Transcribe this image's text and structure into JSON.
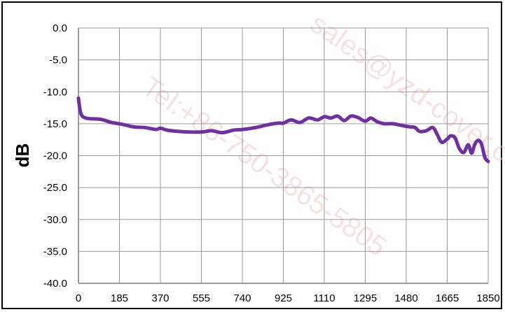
{
  "chart_data": {
    "type": "line",
    "title": "",
    "xlabel": "",
    "ylabel": "dB",
    "xlim": [
      0,
      1850
    ],
    "ylim": [
      -40,
      0
    ],
    "grid": true,
    "x_ticks": [
      "0",
      "185",
      "370",
      "555",
      "740",
      "925",
      "1110",
      "1295",
      "1480",
      "1665",
      "1850"
    ],
    "y_ticks": [
      "0.0",
      "-5.0",
      "-10.0",
      "-15.0",
      "-20.0",
      "-25.0",
      "-30.0",
      "-35.0",
      "-40.0"
    ],
    "series": [
      {
        "color": "#7030a0",
        "x": [
          0,
          10,
          25,
          50,
          100,
          150,
          200,
          250,
          300,
          350,
          370,
          400,
          450,
          500,
          555,
          600,
          650,
          700,
          740,
          800,
          850,
          900,
          925,
          960,
          1000,
          1040,
          1080,
          1110,
          1140,
          1170,
          1200,
          1230,
          1260,
          1295,
          1320,
          1350,
          1380,
          1420,
          1450,
          1480,
          1500,
          1520,
          1540,
          1570,
          1600,
          1620,
          1640,
          1665,
          1680,
          1700,
          1720,
          1740,
          1760,
          1775,
          1790,
          1805,
          1820,
          1835,
          1850
        ],
        "y": [
          -11.0,
          -13.3,
          -14.0,
          -14.2,
          -14.3,
          -14.8,
          -15.1,
          -15.5,
          -15.6,
          -15.9,
          -15.7,
          -16.0,
          -16.2,
          -16.3,
          -16.3,
          -16.1,
          -16.4,
          -16.0,
          -15.9,
          -15.6,
          -15.2,
          -14.9,
          -14.9,
          -14.4,
          -14.8,
          -14.1,
          -14.4,
          -13.9,
          -14.1,
          -13.8,
          -14.5,
          -13.8,
          -14.0,
          -14.6,
          -14.1,
          -14.7,
          -15.0,
          -15.0,
          -15.2,
          -15.4,
          -15.5,
          -15.6,
          -16.2,
          -16.1,
          -15.6,
          -16.7,
          -17.9,
          -17.4,
          -16.9,
          -17.2,
          -18.9,
          -19.5,
          -18.3,
          -19.6,
          -18.2,
          -17.6,
          -18.2,
          -20.3,
          -20.9
        ]
      }
    ]
  },
  "watermark": {
    "line1": "Tel:+86-750-3865-5805",
    "line2": "sales@yzd-cover.com"
  }
}
